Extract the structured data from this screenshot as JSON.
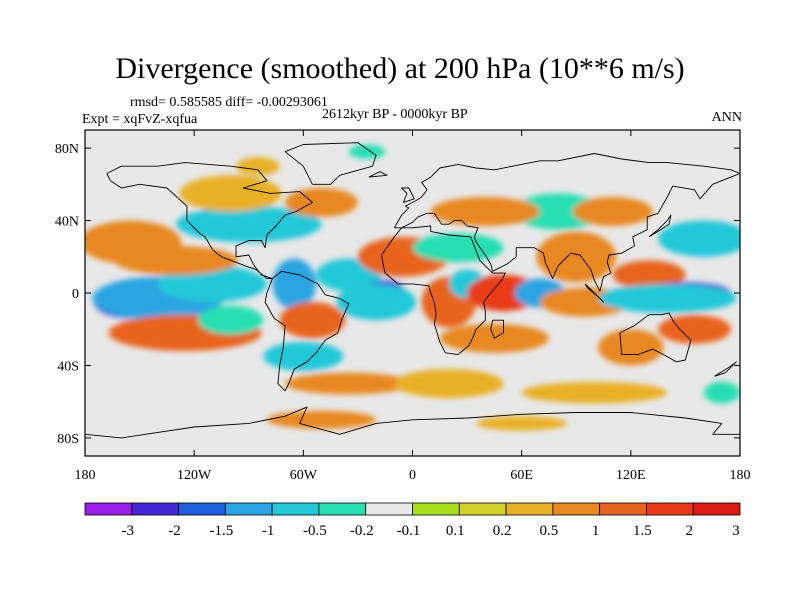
{
  "chart_data": {
    "type": "heatmap",
    "title": "Divergence (smoothed) at 200 hPa (10**6 m/s)",
    "stats_text": "rmsd= 0.585585 diff= -0.00293061",
    "experiment_text": "Expt = xqFvZ-xqfua",
    "period_text": "2612kyr BP - 0000kyr BP",
    "season_text": "ANN",
    "x_axis": {
      "range": [
        -180,
        180
      ],
      "ticks": [
        -180,
        -120,
        -60,
        0,
        60,
        120,
        180
      ],
      "tick_labels": [
        "180",
        "120W",
        "60W",
        "0",
        "60E",
        "120E",
        "180"
      ]
    },
    "y_axis": {
      "range": [
        -90,
        90
      ],
      "ticks": [
        80,
        40,
        0,
        -40,
        -80
      ],
      "tick_labels": [
        "80N",
        "40N",
        "0",
        "40S",
        "80S"
      ]
    },
    "colorbar": {
      "levels": [
        -3,
        -2,
        -1.5,
        -1,
        -0.5,
        -0.2,
        -0.1,
        0.1,
        0.2,
        0.5,
        1,
        1.5,
        2,
        3
      ],
      "labels": [
        "-3",
        "-2",
        "-1.5",
        "-1",
        "-0.5",
        "-0.2",
        "-0.1",
        "0.1",
        "0.2",
        "0.5",
        "1",
        "1.5",
        "2",
        "3"
      ],
      "colors": [
        "#9a1ee6",
        "#4428d6",
        "#1f5fdc",
        "#2aa4e2",
        "#22c8d8",
        "#28deb2",
        "#e8e8e8",
        "#a8e020",
        "#d4d22a",
        "#e8b026",
        "#e88820",
        "#e8641e",
        "#e83a18",
        "#de1a14"
      ]
    },
    "field_blobs": [
      {
        "lon": -155,
        "lat": -5,
        "rx": 20,
        "ry": 9,
        "value": -2.5
      },
      {
        "lon": -140,
        "lat": -3,
        "rx": 36,
        "ry": 12,
        "value": -1.2
      },
      {
        "lon": -110,
        "lat": 5,
        "rx": 30,
        "ry": 10,
        "value": -0.6
      },
      {
        "lon": -130,
        "lat": 18,
        "rx": 34,
        "ry": 8,
        "value": 0.8
      },
      {
        "lon": -155,
        "lat": 28,
        "rx": 28,
        "ry": 12,
        "value": 0.6
      },
      {
        "lon": -125,
        "lat": -22,
        "rx": 42,
        "ry": 10,
        "value": 1.1
      },
      {
        "lon": -100,
        "lat": -15,
        "rx": 18,
        "ry": 8,
        "value": -0.5
      },
      {
        "lon": -90,
        "lat": 38,
        "rx": 40,
        "ry": 10,
        "value": -0.8
      },
      {
        "lon": -100,
        "lat": 55,
        "rx": 28,
        "ry": 10,
        "value": 0.4
      },
      {
        "lon": -50,
        "lat": 50,
        "rx": 20,
        "ry": 8,
        "value": 0.5
      },
      {
        "lon": -65,
        "lat": 5,
        "rx": 12,
        "ry": 14,
        "value": -1.2
      },
      {
        "lon": -55,
        "lat": -15,
        "rx": 18,
        "ry": 10,
        "value": 1.3
      },
      {
        "lon": -60,
        "lat": -35,
        "rx": 22,
        "ry": 8,
        "value": -0.7
      },
      {
        "lon": -35,
        "lat": 10,
        "rx": 18,
        "ry": 9,
        "value": -0.6
      },
      {
        "lon": -15,
        "lat": 2,
        "rx": 10,
        "ry": 5,
        "value": -2.2
      },
      {
        "lon": -20,
        "lat": -5,
        "rx": 22,
        "ry": 10,
        "value": -0.8
      },
      {
        "lon": -5,
        "lat": 20,
        "rx": 25,
        "ry": 11,
        "value": 1.4
      },
      {
        "lon": 25,
        "lat": 25,
        "rx": 25,
        "ry": 8,
        "value": -0.5
      },
      {
        "lon": 20,
        "lat": -5,
        "rx": 15,
        "ry": 14,
        "value": 1.0
      },
      {
        "lon": 30,
        "lat": 5,
        "rx": 10,
        "ry": 8,
        "value": -1.0
      },
      {
        "lon": 50,
        "lat": 0,
        "rx": 20,
        "ry": 10,
        "value": 1.6
      },
      {
        "lon": 45,
        "lat": -25,
        "rx": 30,
        "ry": 8,
        "value": 0.7
      },
      {
        "lon": 70,
        "lat": 0,
        "rx": 14,
        "ry": 8,
        "value": -1.2
      },
      {
        "lon": 90,
        "lat": 20,
        "rx": 22,
        "ry": 14,
        "value": 0.8
      },
      {
        "lon": 95,
        "lat": -5,
        "rx": 25,
        "ry": 8,
        "value": 0.6
      },
      {
        "lon": 80,
        "lat": 45,
        "rx": 25,
        "ry": 10,
        "value": -0.5
      },
      {
        "lon": 40,
        "lat": 45,
        "rx": 30,
        "ry": 8,
        "value": 0.6
      },
      {
        "lon": 130,
        "lat": 10,
        "rx": 20,
        "ry": 8,
        "value": 1.4
      },
      {
        "lon": 150,
        "lat": 0,
        "rx": 25,
        "ry": 6,
        "value": -2.2
      },
      {
        "lon": 140,
        "lat": -3,
        "rx": 38,
        "ry": 8,
        "value": -1.0
      },
      {
        "lon": 120,
        "lat": -30,
        "rx": 18,
        "ry": 10,
        "value": 0.7
      },
      {
        "lon": 155,
        "lat": -20,
        "rx": 20,
        "ry": 8,
        "value": 1.2
      },
      {
        "lon": 160,
        "lat": 30,
        "rx": 25,
        "ry": 10,
        "value": -0.6
      },
      {
        "lon": 110,
        "lat": 45,
        "rx": 22,
        "ry": 8,
        "value": 0.5
      },
      {
        "lon": -35,
        "lat": -50,
        "rx": 35,
        "ry": 6,
        "value": 0.5
      },
      {
        "lon": 20,
        "lat": -50,
        "rx": 30,
        "ry": 8,
        "value": 0.4
      },
      {
        "lon": 100,
        "lat": -55,
        "rx": 40,
        "ry": 6,
        "value": 0.4
      },
      {
        "lon": -50,
        "lat": -70,
        "rx": 30,
        "ry": 5,
        "value": 0.5
      },
      {
        "lon": 60,
        "lat": -72,
        "rx": 25,
        "ry": 4,
        "value": 0.4
      },
      {
        "lon": -25,
        "lat": 78,
        "rx": 10,
        "ry": 4,
        "value": -0.5
      },
      {
        "lon": -85,
        "lat": 70,
        "rx": 12,
        "ry": 5,
        "value": 0.4
      },
      {
        "lon": 170,
        "lat": -55,
        "rx": 10,
        "ry": 6,
        "value": -0.5
      }
    ],
    "coastlines": [
      [
        [
          -168,
          66
        ],
        [
          -160,
          70
        ],
        [
          -140,
          70
        ],
        [
          -125,
          72
        ],
        [
          -100,
          70
        ],
        [
          -85,
          68
        ],
        [
          -80,
          62
        ],
        [
          -93,
          58
        ],
        [
          -78,
          55
        ],
        [
          -62,
          56
        ],
        [
          -55,
          50
        ],
        [
          -64,
          45
        ],
        [
          -70,
          43
        ],
        [
          -75,
          37
        ],
        [
          -80,
          32
        ],
        [
          -81,
          25
        ],
        [
          -83,
          29
        ],
        [
          -90,
          29
        ],
        [
          -97,
          26
        ],
        [
          -97,
          20
        ],
        [
          -90,
          21
        ],
        [
          -87,
          15
        ],
        [
          -83,
          10
        ],
        [
          -77,
          8
        ],
        [
          -80,
          8
        ],
        [
          -86,
          13
        ],
        [
          -92,
          15
        ],
        [
          -105,
          20
        ],
        [
          -110,
          24
        ],
        [
          -114,
          31
        ],
        [
          -117,
          33
        ],
        [
          -124,
          40
        ],
        [
          -124,
          48
        ],
        [
          -135,
          58
        ],
        [
          -150,
          60
        ],
        [
          -160,
          58
        ],
        [
          -166,
          62
        ],
        [
          -168,
          66
        ]
      ],
      [
        [
          -77,
          8
        ],
        [
          -72,
          12
        ],
        [
          -62,
          10
        ],
        [
          -52,
          5
        ],
        [
          -48,
          -1
        ],
        [
          -40,
          -3
        ],
        [
          -35,
          -6
        ],
        [
          -39,
          -15
        ],
        [
          -41,
          -22
        ],
        [
          -48,
          -26
        ],
        [
          -53,
          -33
        ],
        [
          -58,
          -38
        ],
        [
          -65,
          -42
        ],
        [
          -68,
          -50
        ],
        [
          -70,
          -54
        ],
        [
          -74,
          -50
        ],
        [
          -73,
          -40
        ],
        [
          -71,
          -30
        ],
        [
          -70,
          -18
        ],
        [
          -76,
          -14
        ],
        [
          -81,
          -5
        ],
        [
          -80,
          0
        ],
        [
          -77,
          8
        ]
      ],
      [
        [
          -10,
          36
        ],
        [
          -6,
          43
        ],
        [
          -2,
          47
        ],
        [
          -4,
          48
        ],
        [
          2,
          51
        ],
        [
          5,
          53
        ],
        [
          8,
          57
        ],
        [
          5,
          61
        ],
        [
          10,
          64
        ],
        [
          15,
          69
        ],
        [
          25,
          71
        ],
        [
          35,
          69
        ],
        [
          45,
          68
        ],
        [
          55,
          70
        ],
        [
          70,
          73
        ],
        [
          80,
          73
        ],
        [
          100,
          77
        ],
        [
          115,
          74
        ],
        [
          130,
          72
        ],
        [
          140,
          72
        ],
        [
          160,
          70
        ],
        [
          175,
          68
        ],
        [
          180,
          66
        ],
        [
          175,
          64
        ],
        [
          165,
          60
        ],
        [
          158,
          52
        ],
        [
          155,
          57
        ],
        [
          143,
          59
        ],
        [
          140,
          53
        ],
        [
          135,
          44
        ],
        [
          129,
          42
        ],
        [
          129,
          35
        ],
        [
          121,
          31
        ],
        [
          122,
          26
        ],
        [
          115,
          22
        ],
        [
          108,
          21
        ],
        [
          107,
          17
        ],
        [
          109,
          11
        ],
        [
          105,
          9
        ],
        [
          103,
          1
        ],
        [
          100,
          7
        ],
        [
          98,
          13
        ],
        [
          92,
          21
        ],
        [
          87,
          22
        ],
        [
          80,
          15
        ],
        [
          77,
          8
        ],
        [
          73,
          17
        ],
        [
          72,
          22
        ],
        [
          67,
          25
        ],
        [
          57,
          25
        ],
        [
          57,
          20
        ],
        [
          52,
          16
        ],
        [
          44,
          12
        ],
        [
          43,
          16
        ],
        [
          40,
          21
        ],
        [
          35,
          28
        ],
        [
          34,
          31
        ],
        [
          36,
          36
        ],
        [
          30,
          37
        ],
        [
          27,
          40
        ],
        [
          23,
          40
        ],
        [
          20,
          38
        ],
        [
          16,
          38
        ],
        [
          12,
          44
        ],
        [
          8,
          44
        ],
        [
          3,
          42
        ],
        [
          0,
          39
        ],
        [
          -6,
          36
        ],
        [
          -10,
          36
        ]
      ],
      [
        [
          -17,
          21
        ],
        [
          -16,
          15
        ],
        [
          -15,
          11
        ],
        [
          -8,
          5
        ],
        [
          0,
          5
        ],
        [
          9,
          4
        ],
        [
          10,
          0
        ],
        [
          12,
          -5
        ],
        [
          13,
          -12
        ],
        [
          12,
          -17
        ],
        [
          15,
          -27
        ],
        [
          18,
          -33
        ],
        [
          25,
          -34
        ],
        [
          31,
          -29
        ],
        [
          33,
          -25
        ],
        [
          35,
          -20
        ],
        [
          40,
          -15
        ],
        [
          40,
          -10
        ],
        [
          39,
          -5
        ],
        [
          43,
          0
        ],
        [
          49,
          7
        ],
        [
          51,
          11
        ],
        [
          44,
          11
        ],
        [
          37,
          18
        ],
        [
          32,
          31
        ],
        [
          20,
          32
        ],
        [
          10,
          34
        ],
        [
          10,
          37
        ],
        [
          0,
          36
        ],
        [
          -6,
          36
        ],
        [
          -10,
          31
        ],
        [
          -17,
          21
        ]
      ],
      [
        [
          114,
          -22
        ],
        [
          122,
          -18
        ],
        [
          130,
          -12
        ],
        [
          137,
          -12
        ],
        [
          141,
          -11
        ],
        [
          143,
          -15
        ],
        [
          146,
          -19
        ],
        [
          153,
          -26
        ],
        [
          150,
          -37
        ],
        [
          145,
          -38
        ],
        [
          138,
          -34
        ],
        [
          132,
          -31
        ],
        [
          124,
          -34
        ],
        [
          115,
          -34
        ],
        [
          114,
          -22
        ]
      ],
      [
        [
          -55,
          60
        ],
        [
          -45,
          60
        ],
        [
          -40,
          65
        ],
        [
          -22,
          70
        ],
        [
          -20,
          76
        ],
        [
          -30,
          83
        ],
        [
          -60,
          82
        ],
        [
          -70,
          78
        ],
        [
          -60,
          70
        ],
        [
          -55,
          60
        ]
      ],
      [
        [
          -180,
          -78
        ],
        [
          -160,
          -80
        ],
        [
          -120,
          -74
        ],
        [
          -90,
          -72
        ],
        [
          -70,
          -68
        ],
        [
          -58,
          -63
        ],
        [
          -62,
          -72
        ],
        [
          -40,
          -78
        ],
        [
          -20,
          -72
        ],
        [
          0,
          -70
        ],
        [
          30,
          -69
        ],
        [
          60,
          -67
        ],
        [
          90,
          -66
        ],
        [
          120,
          -66
        ],
        [
          150,
          -69
        ],
        [
          170,
          -72
        ],
        [
          165,
          -78
        ],
        [
          180,
          -78
        ]
      ],
      [
        [
          44,
          -15
        ],
        [
          50,
          -15
        ],
        [
          50,
          -22
        ],
        [
          45,
          -25
        ],
        [
          43,
          -20
        ],
        [
          44,
          -15
        ]
      ],
      [
        [
          95,
          5
        ],
        [
          105,
          -5
        ],
        [
          103,
          -3
        ],
        [
          96,
          3
        ],
        [
          95,
          5
        ]
      ],
      [
        [
          130,
          31
        ],
        [
          135,
          34
        ],
        [
          141,
          38
        ],
        [
          142,
          43
        ],
        [
          140,
          40
        ],
        [
          135,
          35
        ],
        [
          130,
          31
        ]
      ],
      [
        [
          -5,
          50
        ],
        [
          -3,
          55
        ],
        [
          -6,
          58
        ],
        [
          -2,
          58
        ],
        [
          1,
          52
        ],
        [
          -5,
          50
        ]
      ],
      [
        [
          -24,
          64
        ],
        [
          -14,
          65
        ],
        [
          -18,
          67
        ],
        [
          -24,
          64
        ]
      ],
      [
        [
          166,
          -46
        ],
        [
          174,
          -41
        ],
        [
          178,
          -38
        ],
        [
          172,
          -44
        ],
        [
          166,
          -46
        ]
      ]
    ]
  }
}
